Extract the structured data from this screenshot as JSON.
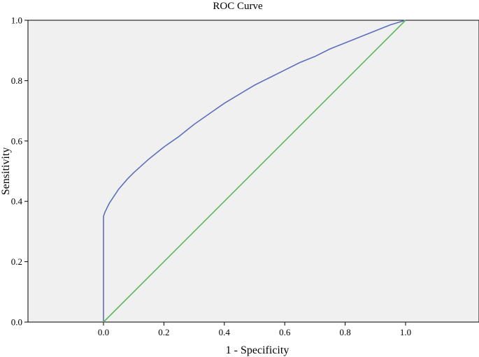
{
  "chart_data": {
    "type": "line",
    "title": "ROC Curve",
    "xlabel": "1 - Specificity",
    "ylabel": "Sensitivity",
    "xlim": [
      0,
      1
    ],
    "ylim": [
      0,
      1
    ],
    "x_ticks": [
      "0.0",
      "0.2",
      "0.4",
      "0.6",
      "0.8",
      "1.0"
    ],
    "y_ticks": [
      "0.0",
      "0.2",
      "0.4",
      "0.6",
      "0.8",
      "1.0"
    ],
    "grid": false,
    "background_color": "#f0f0f0",
    "series": [
      {
        "color": "#5b6fbf",
        "x": [
          0.0,
          0.0,
          0.005,
          0.02,
          0.05,
          0.08,
          0.1,
          0.15,
          0.2,
          0.25,
          0.3,
          0.35,
          0.4,
          0.45,
          0.5,
          0.55,
          0.6,
          0.65,
          0.7,
          0.75,
          0.8,
          0.85,
          0.9,
          0.95,
          1.0
        ],
        "y": [
          0.0,
          0.35,
          0.365,
          0.395,
          0.44,
          0.475,
          0.495,
          0.54,
          0.58,
          0.615,
          0.655,
          0.69,
          0.725,
          0.755,
          0.785,
          0.81,
          0.835,
          0.86,
          0.88,
          0.905,
          0.925,
          0.945,
          0.965,
          0.985,
          1.0
        ]
      },
      {
        "color": "#5cb85c",
        "x": [
          0.0,
          1.0
        ],
        "y": [
          0.0,
          1.0
        ]
      }
    ]
  }
}
